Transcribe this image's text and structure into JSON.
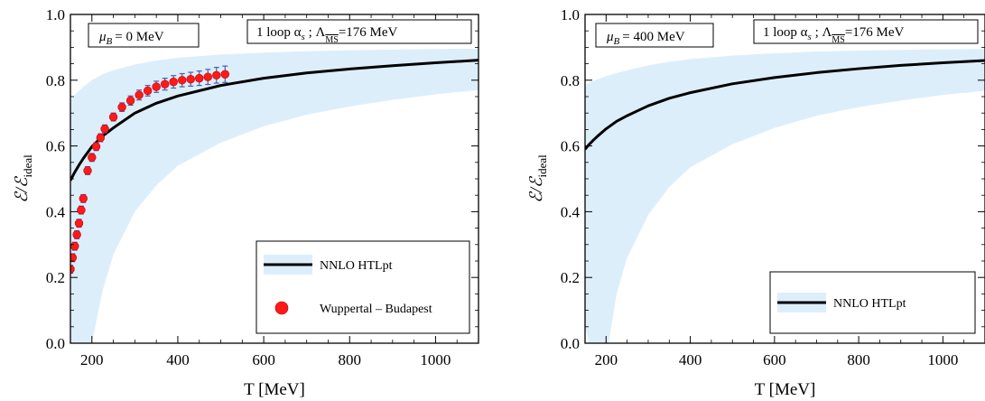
{
  "chart_data": [
    {
      "type": "line",
      "xlabel": "T [MeV]",
      "ylabel": "ℰ/ℰ",
      "ylabel_sub": "ideal",
      "xlim": [
        150,
        1100
      ],
      "ylim": [
        0.0,
        1.0
      ],
      "xticks": [
        200,
        400,
        600,
        800,
        1000
      ],
      "yticks": [
        0.0,
        0.2,
        0.4,
        0.6,
        0.8,
        1.0
      ],
      "ytick_labels": [
        "0.0",
        "0.2",
        "0.4",
        "0.6",
        "0.8",
        "1.0"
      ],
      "grid": false,
      "annotations": {
        "mu": "μ",
        "mu_sub": "B",
        "mu_value": "= 0  MeV",
        "alpha_prefix": "1 loop  α",
        "alpha_sub": "s",
        "lambda_sep": " ;  Λ",
        "lambda_sub": "MS",
        "lambda_value": "=176  MeV"
      },
      "legend_position": "bottom-right",
      "series": [
        {
          "name": "NNLO  HTLpt",
          "kind": "band-line",
          "line_color": "#000000",
          "band_color": "#ddeefb",
          "x": [
            150,
            160,
            170,
            180,
            200,
            225,
            250,
            300,
            350,
            400,
            500,
            600,
            700,
            800,
            900,
            1000,
            1100
          ],
          "y": [
            0.495,
            0.52,
            0.542,
            0.562,
            0.598,
            0.63,
            0.655,
            0.7,
            0.73,
            0.752,
            0.784,
            0.806,
            0.822,
            0.834,
            0.844,
            0.853,
            0.861
          ],
          "band_upper": [
            0.74,
            0.755,
            0.768,
            0.78,
            0.8,
            0.818,
            0.83,
            0.848,
            0.86,
            0.868,
            0.878,
            0.884,
            0.888,
            0.891,
            0.893,
            0.895,
            0.896
          ],
          "band_lower": [
            -0.05,
            -0.05,
            -0.05,
            -0.04,
            0.0,
            0.16,
            0.27,
            0.4,
            0.48,
            0.54,
            0.61,
            0.66,
            0.695,
            0.72,
            0.74,
            0.757,
            0.77
          ]
        },
        {
          "name": "Wuppertal – Budapest",
          "kind": "points",
          "color": "#ff1a1a",
          "error_color": "#4a5fb0",
          "x": [
            150,
            155,
            160,
            165,
            170,
            175,
            180,
            190,
            200,
            210,
            220,
            230,
            250,
            270,
            290,
            310,
            330,
            350,
            370,
            390,
            410,
            430,
            450,
            470,
            490,
            510
          ],
          "y": [
            0.225,
            0.26,
            0.295,
            0.33,
            0.365,
            0.405,
            0.44,
            0.525,
            0.565,
            0.598,
            0.625,
            0.652,
            0.688,
            0.718,
            0.738,
            0.755,
            0.768,
            0.78,
            0.788,
            0.795,
            0.8,
            0.803,
            0.806,
            0.81,
            0.815,
            0.818
          ],
          "err": [
            0.012,
            0.012,
            0.012,
            0.012,
            0.012,
            0.012,
            0.012,
            0.012,
            0.012,
            0.012,
            0.012,
            0.012,
            0.012,
            0.013,
            0.014,
            0.015,
            0.016,
            0.017,
            0.018,
            0.019,
            0.02,
            0.021,
            0.022,
            0.023,
            0.024,
            0.025
          ]
        }
      ]
    },
    {
      "type": "line",
      "xlabel": "T [MeV]",
      "ylabel": "ℰ/ℰ",
      "ylabel_sub": "ideal",
      "xlim": [
        150,
        1100
      ],
      "ylim": [
        0.0,
        1.0
      ],
      "xticks": [
        200,
        400,
        600,
        800,
        1000
      ],
      "yticks": [
        0.0,
        0.2,
        0.4,
        0.6,
        0.8,
        1.0
      ],
      "ytick_labels": [
        "0.0",
        "0.2",
        "0.4",
        "0.6",
        "0.8",
        "1.0"
      ],
      "grid": false,
      "annotations": {
        "mu": "μ",
        "mu_sub": "B",
        "mu_value": "= 400 MeV",
        "alpha_prefix": "1 loop  α",
        "alpha_sub": "s",
        "lambda_sep": " ;  Λ",
        "lambda_sub": "MS",
        "lambda_value": "=176  MeV"
      },
      "legend_position": "bottom-right",
      "series": [
        {
          "name": "NNLO  HTLpt",
          "kind": "band-line",
          "line_color": "#000000",
          "band_color": "#ddeefb",
          "x": [
            150,
            160,
            170,
            180,
            200,
            225,
            250,
            300,
            350,
            400,
            500,
            600,
            700,
            800,
            900,
            1000,
            1100
          ],
          "y": [
            0.59,
            0.605,
            0.618,
            0.63,
            0.652,
            0.675,
            0.692,
            0.722,
            0.745,
            0.762,
            0.789,
            0.808,
            0.823,
            0.835,
            0.845,
            0.853,
            0.86
          ],
          "band_upper": [
            0.785,
            0.792,
            0.798,
            0.803,
            0.812,
            0.822,
            0.83,
            0.845,
            0.856,
            0.864,
            0.875,
            0.882,
            0.887,
            0.89,
            0.892,
            0.894,
            0.895
          ],
          "band_lower": [
            0.05,
            0.0,
            -0.05,
            -0.05,
            -0.05,
            0.15,
            0.26,
            0.39,
            0.475,
            0.535,
            0.605,
            0.655,
            0.692,
            0.718,
            0.738,
            0.755,
            0.768
          ]
        }
      ]
    }
  ]
}
